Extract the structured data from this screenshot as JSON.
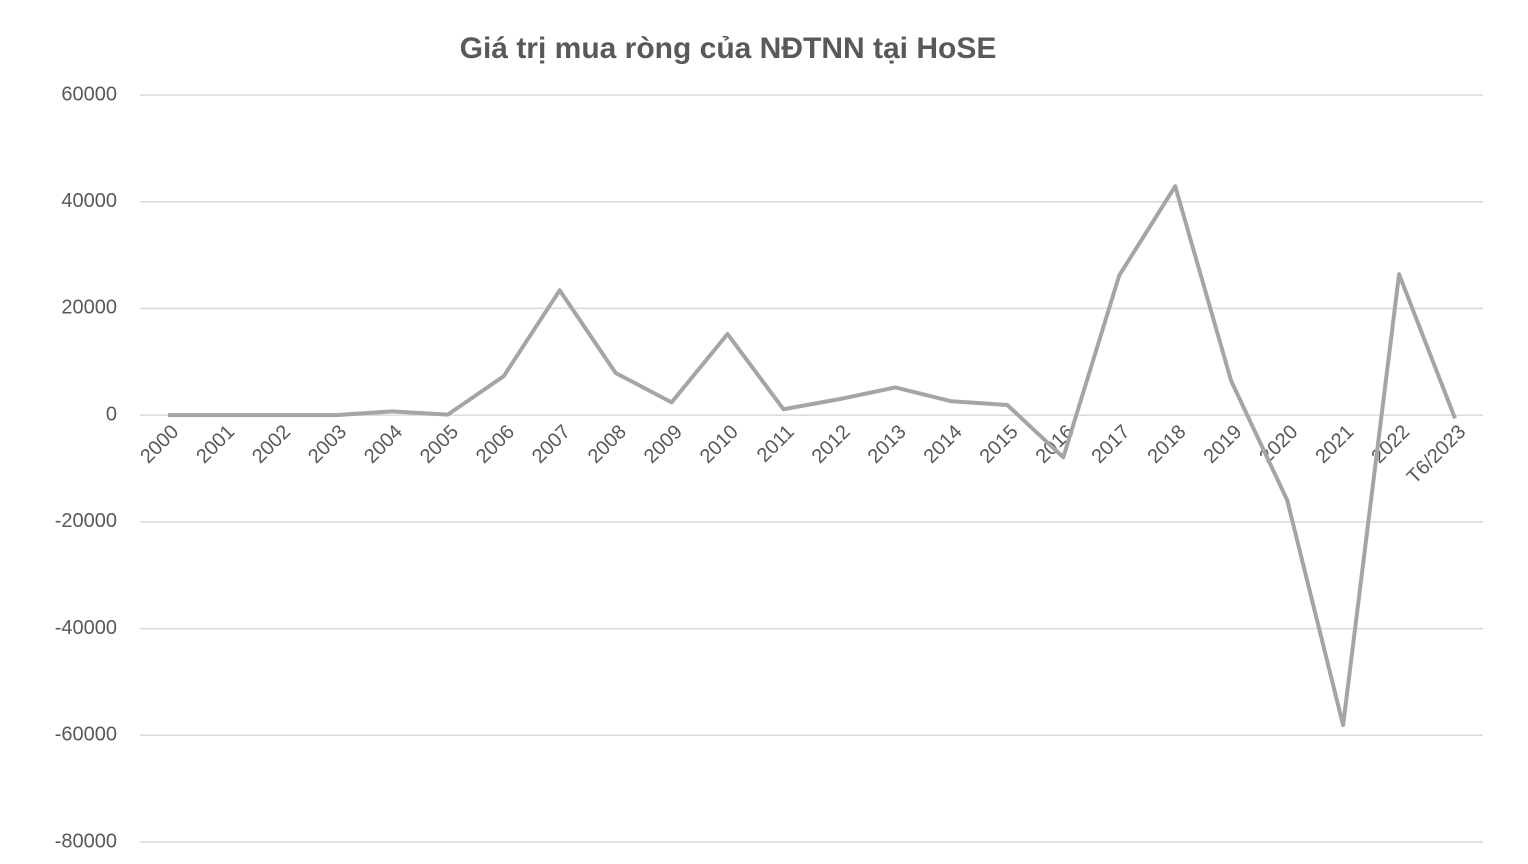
{
  "chart_data": {
    "type": "line",
    "title": "Giá trị mua ròng của NĐTNN tại HoSE",
    "categories": [
      "2000",
      "2001",
      "2002",
      "2003",
      "2004",
      "2005",
      "2006",
      "2007",
      "2008",
      "2009",
      "2010",
      "2011",
      "2012",
      "2013",
      "2014",
      "2015",
      "2016",
      "2017",
      "2018",
      "2019",
      "2020",
      "2021",
      "2022",
      "T6/2023"
    ],
    "series": [
      {
        "color": "#a5a5a5",
        "values": [
          0,
          0,
          0,
          0,
          700,
          100,
          7300,
          23400,
          7900,
          2400,
          15200,
          1100,
          3000,
          5200,
          2600,
          1900,
          -7900,
          26200,
          42900,
          6400,
          -15900,
          -58100,
          26400,
          -600
        ]
      }
    ],
    "ylim": [
      -80000,
      60000
    ],
    "yticks": [
      -80000,
      -60000,
      -40000,
      -20000,
      0,
      20000,
      40000,
      60000
    ],
    "grid": true
  }
}
